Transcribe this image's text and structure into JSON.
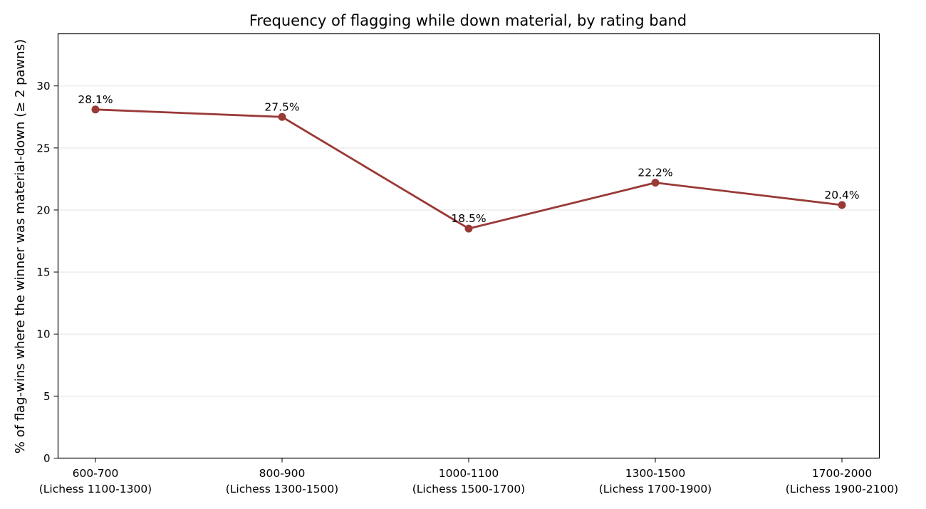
{
  "chart_data": {
    "type": "line",
    "title": "Frequency of flagging while down material, by rating band",
    "xlabel": "",
    "ylabel": "% of flag-wins where the winner was material-down (≥ 2 pawns)",
    "categories": [
      [
        "600-700",
        "(Lichess 1100-1300)"
      ],
      [
        "800-900",
        "(Lichess 1300-1500)"
      ],
      [
        "1000-1100",
        "(Lichess 1500-1700)"
      ],
      [
        "1300-1500",
        "(Lichess 1700-1900)"
      ],
      [
        "1700-2000",
        "(Lichess 1900-2100)"
      ]
    ],
    "series": [
      {
        "values": [
          28.1,
          27.5,
          18.5,
          22.2,
          20.4
        ],
        "labels": [
          "28.1%",
          "27.5%",
          "18.5%",
          "22.2%",
          "20.4%"
        ],
        "color": "#9a3a37"
      }
    ],
    "ylim": [
      0,
      34.2
    ],
    "yticks": [
      0,
      5,
      10,
      15,
      20,
      25,
      30
    ],
    "grid": "horizontal",
    "legend": "none"
  }
}
